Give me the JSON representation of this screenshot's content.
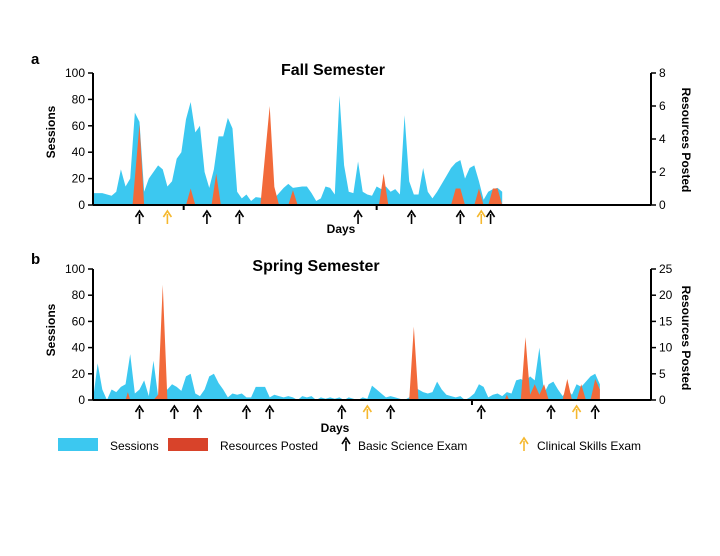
{
  "legend": {
    "sessions": "Sessions",
    "resources": "Resources Posted",
    "basic": "Basic Science Exam",
    "clinical": "Clinical Skills Exam"
  },
  "colors": {
    "sessions": "#3cc8f0",
    "resources": "#f26a3a",
    "legend_resources": "#d8432a",
    "basic_arrow": "#000000",
    "clinical_arrow": "#f5b82e"
  },
  "chart_data": [
    {
      "panel": "a",
      "type": "area",
      "title": "Fall Semester",
      "xlabel": "Days",
      "ylabel": "Sessions",
      "y2label": "Resources Posted",
      "ylim": [
        0,
        100
      ],
      "y2lim": [
        0,
        8
      ],
      "yticks": [
        "0",
        "20",
        "40",
        "60",
        "80",
        "100"
      ],
      "y2ticks": [
        "0",
        "2",
        "4",
        "6",
        "8"
      ],
      "n_days": 120,
      "sessions": [
        {
          "x": 0,
          "y": 9
        },
        {
          "x": 2,
          "y": 9
        },
        {
          "x": 4,
          "y": 7
        },
        {
          "x": 5,
          "y": 10
        },
        {
          "x": 6,
          "y": 27
        },
        {
          "x": 7,
          "y": 14
        },
        {
          "x": 8,
          "y": 20
        },
        {
          "x": 9,
          "y": 70
        },
        {
          "x": 10,
          "y": 63
        },
        {
          "x": 11,
          "y": 10
        },
        {
          "x": 12,
          "y": 20
        },
        {
          "x": 14,
          "y": 30
        },
        {
          "x": 15,
          "y": 27
        },
        {
          "x": 16,
          "y": 14
        },
        {
          "x": 17,
          "y": 18
        },
        {
          "x": 18,
          "y": 35
        },
        {
          "x": 19,
          "y": 40
        },
        {
          "x": 20,
          "y": 65
        },
        {
          "x": 21,
          "y": 78
        },
        {
          "x": 22,
          "y": 55
        },
        {
          "x": 23,
          "y": 60
        },
        {
          "x": 24,
          "y": 25
        },
        {
          "x": 25,
          "y": 13
        },
        {
          "x": 26,
          "y": 27
        },
        {
          "x": 27,
          "y": 52
        },
        {
          "x": 28,
          "y": 52
        },
        {
          "x": 29,
          "y": 66
        },
        {
          "x": 30,
          "y": 58
        },
        {
          "x": 31,
          "y": 10
        },
        {
          "x": 32,
          "y": 5
        },
        {
          "x": 33,
          "y": 8
        },
        {
          "x": 34,
          "y": 3
        },
        {
          "x": 35,
          "y": 6
        },
        {
          "x": 37,
          "y": 5
        },
        {
          "x": 39,
          "y": 5
        },
        {
          "x": 41,
          "y": 13
        },
        {
          "x": 42,
          "y": 16
        },
        {
          "x": 43,
          "y": 13
        },
        {
          "x": 45,
          "y": 14
        },
        {
          "x": 46,
          "y": 14
        },
        {
          "x": 47,
          "y": 9
        },
        {
          "x": 48,
          "y": 3
        },
        {
          "x": 49,
          "y": 5
        },
        {
          "x": 50,
          "y": 14
        },
        {
          "x": 51,
          "y": 13
        },
        {
          "x": 52,
          "y": 8
        },
        {
          "x": 53,
          "y": 83
        },
        {
          "x": 54,
          "y": 30
        },
        {
          "x": 55,
          "y": 10
        },
        {
          "x": 56,
          "y": 9
        },
        {
          "x": 57,
          "y": 33
        },
        {
          "x": 58,
          "y": 10
        },
        {
          "x": 59,
          "y": 8
        },
        {
          "x": 60,
          "y": 7
        },
        {
          "x": 61,
          "y": 14
        },
        {
          "x": 62,
          "y": 12
        },
        {
          "x": 63,
          "y": 14
        },
        {
          "x": 64,
          "y": 10
        },
        {
          "x": 65,
          "y": 12
        },
        {
          "x": 66,
          "y": 8
        },
        {
          "x": 67,
          "y": 68
        },
        {
          "x": 68,
          "y": 18
        },
        {
          "x": 69,
          "y": 8
        },
        {
          "x": 70,
          "y": 8
        },
        {
          "x": 71,
          "y": 28
        },
        {
          "x": 72,
          "y": 10
        },
        {
          "x": 73,
          "y": 5
        },
        {
          "x": 74,
          "y": 10
        },
        {
          "x": 75,
          "y": 16
        },
        {
          "x": 76,
          "y": 22
        },
        {
          "x": 77,
          "y": 28
        },
        {
          "x": 78,
          "y": 32
        },
        {
          "x": 79,
          "y": 34
        },
        {
          "x": 80,
          "y": 20
        },
        {
          "x": 81,
          "y": 28
        },
        {
          "x": 82,
          "y": 30
        },
        {
          "x": 83,
          "y": 18
        },
        {
          "x": 84,
          "y": 4
        },
        {
          "x": 85,
          "y": 10
        },
        {
          "x": 86,
          "y": 12
        },
        {
          "x": 87,
          "y": 13
        },
        {
          "x": 88,
          "y": 10
        }
      ],
      "resources": [
        {
          "x": 0,
          "y": 0
        },
        {
          "x": 8.5,
          "y": 0
        },
        {
          "x": 10,
          "y": 4.9
        },
        {
          "x": 11,
          "y": 0
        },
        {
          "x": 20,
          "y": 0
        },
        {
          "x": 21,
          "y": 1
        },
        {
          "x": 22,
          "y": 0
        },
        {
          "x": 25.5,
          "y": 0
        },
        {
          "x": 26.5,
          "y": 1.9
        },
        {
          "x": 27.5,
          "y": 0
        },
        {
          "x": 36,
          "y": 0
        },
        {
          "x": 38,
          "y": 6
        },
        {
          "x": 39,
          "y": 1.1
        },
        {
          "x": 40,
          "y": 0
        },
        {
          "x": 42,
          "y": 0
        },
        {
          "x": 43,
          "y": 0.9
        },
        {
          "x": 44,
          "y": 0
        },
        {
          "x": 61.5,
          "y": 0
        },
        {
          "x": 62.5,
          "y": 1.9
        },
        {
          "x": 63.5,
          "y": 0
        },
        {
          "x": 77,
          "y": 0
        },
        {
          "x": 78,
          "y": 1
        },
        {
          "x": 79,
          "y": 1
        },
        {
          "x": 80,
          "y": 0
        },
        {
          "x": 82,
          "y": 0
        },
        {
          "x": 83,
          "y": 1
        },
        {
          "x": 84,
          "y": 0
        },
        {
          "x": 85,
          "y": 0
        },
        {
          "x": 86,
          "y": 1
        },
        {
          "x": 87,
          "y": 1
        },
        {
          "x": 88,
          "y": 0
        }
      ],
      "basic_exams": [
        10,
        24.5,
        31.5,
        57,
        68.5,
        79,
        85.5
      ],
      "clinical_exams": [
        16,
        83.5
      ],
      "block_ticks": [
        19.5,
        61
      ]
    },
    {
      "panel": "b",
      "type": "area",
      "title": "Spring Semester",
      "xlabel": "Days",
      "ylabel": "Sessions",
      "y2label": "Resources Posted",
      "ylim": [
        0,
        100
      ],
      "y2lim": [
        0,
        25
      ],
      "yticks": [
        "0",
        "20",
        "40",
        "60",
        "80",
        "100"
      ],
      "y2ticks": [
        "0",
        "5",
        "10",
        "15",
        "20",
        "25"
      ],
      "n_days": 120,
      "sessions": [
        {
          "x": 0,
          "y": 0
        },
        {
          "x": 1,
          "y": 28
        },
        {
          "x": 2,
          "y": 8
        },
        {
          "x": 3,
          "y": 0
        },
        {
          "x": 4,
          "y": 8
        },
        {
          "x": 5,
          "y": 6
        },
        {
          "x": 6,
          "y": 10
        },
        {
          "x": 7,
          "y": 12
        },
        {
          "x": 8,
          "y": 35
        },
        {
          "x": 9,
          "y": 5
        },
        {
          "x": 10,
          "y": 8
        },
        {
          "x": 11,
          "y": 15
        },
        {
          "x": 12,
          "y": 3
        },
        {
          "x": 13,
          "y": 30
        },
        {
          "x": 14,
          "y": 3
        },
        {
          "x": 15,
          "y": 8
        },
        {
          "x": 16,
          "y": 8
        },
        {
          "x": 17,
          "y": 12
        },
        {
          "x": 18,
          "y": 10
        },
        {
          "x": 19,
          "y": 7
        },
        {
          "x": 20,
          "y": 18
        },
        {
          "x": 21,
          "y": 20
        },
        {
          "x": 22,
          "y": 5
        },
        {
          "x": 23,
          "y": 3
        },
        {
          "x": 24,
          "y": 8
        },
        {
          "x": 25,
          "y": 18
        },
        {
          "x": 26,
          "y": 20
        },
        {
          "x": 27,
          "y": 13
        },
        {
          "x": 28,
          "y": 8
        },
        {
          "x": 29,
          "y": 2
        },
        {
          "x": 30,
          "y": 5
        },
        {
          "x": 31,
          "y": 4
        },
        {
          "x": 32,
          "y": 5
        },
        {
          "x": 33,
          "y": 2
        },
        {
          "x": 34,
          "y": 2
        },
        {
          "x": 35,
          "y": 10
        },
        {
          "x": 36,
          "y": 10
        },
        {
          "x": 37,
          "y": 10
        },
        {
          "x": 38,
          "y": 2
        },
        {
          "x": 39,
          "y": 4
        },
        {
          "x": 40,
          "y": 3
        },
        {
          "x": 41,
          "y": 2
        },
        {
          "x": 42,
          "y": 3
        },
        {
          "x": 43,
          "y": 2
        },
        {
          "x": 44,
          "y": 0
        },
        {
          "x": 45,
          "y": 3
        },
        {
          "x": 46,
          "y": 2
        },
        {
          "x": 47,
          "y": 3
        },
        {
          "x": 48,
          "y": 0
        },
        {
          "x": 49,
          "y": 2
        },
        {
          "x": 50,
          "y": 1
        },
        {
          "x": 51,
          "y": 2
        },
        {
          "x": 52,
          "y": 1
        },
        {
          "x": 53,
          "y": 2
        },
        {
          "x": 54,
          "y": 0
        },
        {
          "x": 55,
          "y": 2
        },
        {
          "x": 56,
          "y": 1
        },
        {
          "x": 57,
          "y": 0
        },
        {
          "x": 58,
          "y": 2
        },
        {
          "x": 59,
          "y": 1
        },
        {
          "x": 60,
          "y": 11
        },
        {
          "x": 61,
          "y": 8
        },
        {
          "x": 62,
          "y": 5
        },
        {
          "x": 63,
          "y": 2
        },
        {
          "x": 64,
          "y": 3
        },
        {
          "x": 65,
          "y": 2
        },
        {
          "x": 66,
          "y": 1
        },
        {
          "x": 67,
          "y": 0
        },
        {
          "x": 68,
          "y": 2
        },
        {
          "x": 69,
          "y": 10
        },
        {
          "x": 70,
          "y": 8
        },
        {
          "x": 71,
          "y": 6
        },
        {
          "x": 72,
          "y": 5
        },
        {
          "x": 73,
          "y": 6
        },
        {
          "x": 74,
          "y": 14
        },
        {
          "x": 75,
          "y": 8
        },
        {
          "x": 76,
          "y": 4
        },
        {
          "x": 77,
          "y": 3
        },
        {
          "x": 78,
          "y": 2
        },
        {
          "x": 79,
          "y": 3
        },
        {
          "x": 80,
          "y": 0
        },
        {
          "x": 81,
          "y": 2
        },
        {
          "x": 82,
          "y": 5
        },
        {
          "x": 83,
          "y": 12
        },
        {
          "x": 84,
          "y": 10
        },
        {
          "x": 85,
          "y": 2
        },
        {
          "x": 86,
          "y": 4
        },
        {
          "x": 87,
          "y": 5
        },
        {
          "x": 88,
          "y": 3
        },
        {
          "x": 89,
          "y": 6
        },
        {
          "x": 90,
          "y": 5
        },
        {
          "x": 91,
          "y": 15
        },
        {
          "x": 92,
          "y": 16
        },
        {
          "x": 93,
          "y": 14
        },
        {
          "x": 94,
          "y": 18
        },
        {
          "x": 95,
          "y": 15
        },
        {
          "x": 96,
          "y": 40
        },
        {
          "x": 97,
          "y": 5
        },
        {
          "x": 98,
          "y": 12
        },
        {
          "x": 99,
          "y": 14
        },
        {
          "x": 100,
          "y": 8
        },
        {
          "x": 101,
          "y": 3
        },
        {
          "x": 102,
          "y": 8
        },
        {
          "x": 103,
          "y": 4
        },
        {
          "x": 104,
          "y": 12
        },
        {
          "x": 105,
          "y": 10
        },
        {
          "x": 106,
          "y": 14
        },
        {
          "x": 107,
          "y": 18
        },
        {
          "x": 108,
          "y": 20
        },
        {
          "x": 109,
          "y": 12
        }
      ],
      "resources": [
        {
          "x": 0,
          "y": 0
        },
        {
          "x": 7,
          "y": 0
        },
        {
          "x": 7.5,
          "y": 1.5
        },
        {
          "x": 8,
          "y": 0
        },
        {
          "x": 13,
          "y": 0
        },
        {
          "x": 14,
          "y": 1
        },
        {
          "x": 15,
          "y": 22
        },
        {
          "x": 16,
          "y": 0
        },
        {
          "x": 68,
          "y": 0
        },
        {
          "x": 69,
          "y": 14
        },
        {
          "x": 70,
          "y": 0
        },
        {
          "x": 88.5,
          "y": 0
        },
        {
          "x": 89,
          "y": 1
        },
        {
          "x": 89.5,
          "y": 0
        },
        {
          "x": 92,
          "y": 0
        },
        {
          "x": 93,
          "y": 12
        },
        {
          "x": 94,
          "y": 1
        },
        {
          "x": 95,
          "y": 3
        },
        {
          "x": 96,
          "y": 1
        },
        {
          "x": 97,
          "y": 3
        },
        {
          "x": 98,
          "y": 0
        },
        {
          "x": 101,
          "y": 0
        },
        {
          "x": 102,
          "y": 4
        },
        {
          "x": 103,
          "y": 0
        },
        {
          "x": 104,
          "y": 0
        },
        {
          "x": 105,
          "y": 3
        },
        {
          "x": 106,
          "y": 0
        },
        {
          "x": 107,
          "y": 0
        },
        {
          "x": 108,
          "y": 4
        },
        {
          "x": 109,
          "y": 2
        }
      ],
      "basic_exams": [
        10,
        17.5,
        22.5,
        33,
        38,
        53.5,
        64,
        83.5,
        98.5,
        108
      ],
      "clinical_exams": [
        59,
        104
      ],
      "block_ticks": [
        81.5
      ]
    }
  ]
}
